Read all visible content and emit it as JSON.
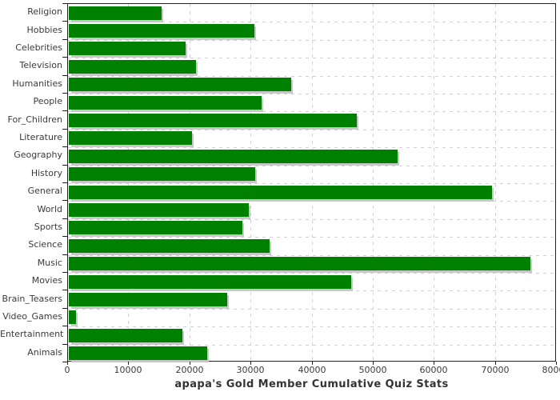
{
  "chart_data": {
    "type": "bar",
    "orientation": "horizontal",
    "title": "apapa's Gold Member Cumulative Quiz Stats",
    "categories": [
      "Religion",
      "Hobbies",
      "Celebrities",
      "Television",
      "Humanities",
      "People",
      "For_Children",
      "Literature",
      "Geography",
      "History",
      "General",
      "World",
      "Sports",
      "Science",
      "Music",
      "Movies",
      "Brain_Teasers",
      "Video_Games",
      "Entertainment",
      "Animals"
    ],
    "values": [
      15200,
      30400,
      19100,
      20800,
      36400,
      31600,
      47200,
      20100,
      53800,
      30500,
      69300,
      29500,
      28400,
      32800,
      75500,
      46200,
      25900,
      1200,
      18600,
      22700
    ],
    "xlim": [
      0,
      80000
    ],
    "x_ticks": [
      0,
      10000,
      20000,
      30000,
      40000,
      50000,
      60000,
      70000,
      80000
    ],
    "xlabel": "",
    "ylabel": "",
    "grid": true,
    "legend": false,
    "colors": {
      "bar": "#008000",
      "bar_shadow": "#c8c8c8",
      "gridline": "#ccd2d9",
      "axis": "#222222",
      "text": "#3a3a3a",
      "background": "#ffffff"
    }
  }
}
